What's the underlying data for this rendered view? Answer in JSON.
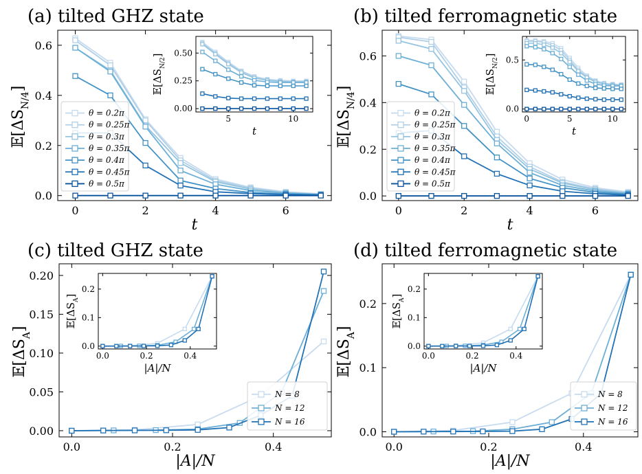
{
  "chart_data": [
    {
      "type": "line",
      "panel": "a",
      "title": "(a) tilted GHZ state",
      "xlabel": "t",
      "ylabel": "𝔼[ΔS_N/4]",
      "xlim": [
        -0.5,
        7.3
      ],
      "ylim": [
        -0.02,
        0.66
      ],
      "xticks": [
        0,
        2,
        4,
        6
      ],
      "yticks": [
        0.0,
        0.2,
        0.4,
        0.6
      ],
      "ytick_labels": [
        "0.0",
        "0.2",
        "0.4",
        "0.6"
      ],
      "legend_placement": "center-left",
      "x": [
        0,
        1,
        2,
        3,
        4,
        5,
        6,
        7
      ],
      "series": [
        {
          "name": "θ = 0.2π",
          "color": "#c6dbef",
          "values": [
            0.628,
            0.53,
            0.305,
            0.15,
            0.066,
            0.033,
            0.015,
            0.007
          ]
        },
        {
          "name": "θ = 0.25π",
          "color": "#b1d0e7",
          "values": [
            0.62,
            0.52,
            0.3,
            0.14,
            0.06,
            0.03,
            0.013,
            0.006
          ]
        },
        {
          "name": "θ = 0.3π",
          "color": "#94c4df",
          "values": [
            0.59,
            0.5,
            0.28,
            0.13,
            0.055,
            0.026,
            0.011,
            0.005
          ]
        },
        {
          "name": "θ = 0.35π",
          "color": "#6baed6",
          "values": [
            0.59,
            0.495,
            0.275,
            0.1,
            0.045,
            0.02,
            0.01,
            0.004
          ]
        },
        {
          "name": "θ = 0.4π",
          "color": "#4292c6",
          "values": [
            0.477,
            0.4,
            0.21,
            0.06,
            0.028,
            0.012,
            0.006,
            0.003
          ]
        },
        {
          "name": "θ = 0.45π",
          "color": "#2171b5",
          "values": [
            0.25,
            0.25,
            0.12,
            0.04,
            0.015,
            0.008,
            0.004,
            0.002
          ]
        },
        {
          "name": "θ = 0.5π",
          "color": "#08519c",
          "values": [
            0.0,
            0.0,
            0.0,
            0.0,
            0.0,
            0.0,
            0.0,
            0.0
          ]
        }
      ],
      "inset": {
        "xlabel": "t",
        "ylabel": "𝔼[ΔS_N/2]",
        "xlim": [
          2.5,
          11.5
        ],
        "ylim": [
          -0.03,
          0.65
        ],
        "xticks": [
          5,
          10
        ],
        "yticks": [
          0.0,
          0.25,
          0.5
        ],
        "ytick_labels": [
          "0.00",
          "0.25",
          "0.50"
        ],
        "x": [
          3,
          4,
          5,
          6,
          7,
          8,
          9,
          10,
          11
        ],
        "series": [
          {
            "color": "#c6dbef",
            "values": [
              0.6,
              0.51,
              0.42,
              0.34,
              0.29,
              0.265,
              0.255,
              0.25,
              0.25
            ]
          },
          {
            "color": "#b1d0e7",
            "values": [
              0.59,
              0.5,
              0.41,
              0.335,
              0.285,
              0.26,
              0.25,
              0.245,
              0.245
            ]
          },
          {
            "color": "#94c4df",
            "values": [
              0.58,
              0.49,
              0.4,
              0.325,
              0.275,
              0.255,
              0.245,
              0.24,
              0.24
            ]
          },
          {
            "color": "#6baed6",
            "values": [
              0.51,
              0.43,
              0.35,
              0.29,
              0.255,
              0.24,
              0.235,
              0.235,
              0.235
            ]
          },
          {
            "color": "#4292c6",
            "values": [
              0.355,
              0.31,
              0.27,
              0.235,
              0.21,
              0.205,
              0.205,
              0.205,
              0.205
            ]
          },
          {
            "color": "#2171b5",
            "values": [
              0.135,
              0.11,
              0.095,
              0.09,
              0.09,
              0.09,
              0.09,
              0.09,
              0.09
            ]
          },
          {
            "color": "#08519c",
            "values": [
              0.0,
              0.0,
              0.0,
              0.0,
              0.0,
              0.0,
              0.0,
              0.0,
              0.0
            ]
          }
        ]
      }
    },
    {
      "type": "line",
      "panel": "b",
      "title": "(b) tilted ferromagnetic state",
      "xlabel": "t",
      "ylabel": "𝔼[ΔS_N/4]",
      "xlim": [
        -0.5,
        7.3
      ],
      "ylim": [
        -0.02,
        0.71
      ],
      "xticks": [
        0,
        2,
        4,
        6
      ],
      "yticks": [
        0.0,
        0.2,
        0.4,
        0.6
      ],
      "ytick_labels": [
        "0.0",
        "0.2",
        "0.4",
        "0.6"
      ],
      "legend_placement": "center-left",
      "x": [
        0,
        1,
        2,
        3,
        4,
        5,
        6,
        7
      ],
      "series": [
        {
          "name": "θ = 0.2π",
          "color": "#c6dbef",
          "values": [
            0.685,
            0.67,
            0.49,
            0.275,
            0.14,
            0.07,
            0.035,
            0.017
          ]
        },
        {
          "name": "θ = 0.25π",
          "color": "#b1d0e7",
          "values": [
            0.68,
            0.66,
            0.465,
            0.255,
            0.125,
            0.06,
            0.03,
            0.014
          ]
        },
        {
          "name": "θ = 0.3π",
          "color": "#94c4df",
          "values": [
            0.665,
            0.63,
            0.45,
            0.24,
            0.115,
            0.055,
            0.026,
            0.012
          ]
        },
        {
          "name": "θ = 0.35π",
          "color": "#6baed6",
          "values": [
            0.6,
            0.56,
            0.39,
            0.225,
            0.1,
            0.045,
            0.021,
            0.01
          ]
        },
        {
          "name": "θ = 0.4π",
          "color": "#4292c6",
          "values": [
            0.48,
            0.435,
            0.3,
            0.165,
            0.075,
            0.035,
            0.015,
            0.007
          ]
        },
        {
          "name": "θ = 0.45π",
          "color": "#2171b5",
          "values": [
            0.27,
            0.28,
            0.17,
            0.095,
            0.045,
            0.02,
            0.009,
            0.004
          ]
        },
        {
          "name": "θ = 0.5π",
          "color": "#08519c",
          "values": [
            0.0,
            0.0,
            0.0,
            0.0,
            0.0,
            0.0,
            0.0,
            0.0
          ]
        }
      ],
      "inset": {
        "xlabel": "t",
        "ylabel": "𝔼[ΔS_N/2]",
        "xlim": [
          -0.5,
          11.5
        ],
        "ylim": [
          -0.03,
          0.74
        ],
        "xticks": [
          0,
          5,
          10
        ],
        "yticks": [
          0.0,
          0.5
        ],
        "ytick_labels": [
          "0.0",
          "0.5"
        ],
        "x": [
          0,
          1,
          2,
          3,
          4,
          5,
          6,
          7,
          8,
          9,
          10,
          11
        ],
        "series": [
          {
            "color": "#c6dbef",
            "values": [
              0.7,
              0.7,
              0.69,
              0.67,
              0.62,
              0.52,
              0.42,
              0.34,
              0.29,
              0.265,
              0.255,
              0.25
            ]
          },
          {
            "color": "#b1d0e7",
            "values": [
              0.69,
              0.69,
              0.68,
              0.65,
              0.6,
              0.5,
              0.4,
              0.33,
              0.285,
              0.26,
              0.25,
              0.245
            ]
          },
          {
            "color": "#94c4df",
            "values": [
              0.67,
              0.67,
              0.655,
              0.625,
              0.57,
              0.48,
              0.385,
              0.32,
              0.275,
              0.255,
              0.245,
              0.24
            ]
          },
          {
            "color": "#6baed6",
            "values": [
              0.64,
              0.63,
              0.61,
              0.57,
              0.51,
              0.43,
              0.35,
              0.29,
              0.255,
              0.24,
              0.235,
              0.235
            ]
          },
          {
            "color": "#4292c6",
            "values": [
              0.455,
              0.45,
              0.43,
              0.4,
              0.355,
              0.3,
              0.26,
              0.235,
              0.215,
              0.21,
              0.205,
              0.205
            ]
          },
          {
            "color": "#2171b5",
            "values": [
              0.195,
              0.19,
              0.18,
              0.17,
              0.15,
              0.13,
              0.115,
              0.105,
              0.1,
              0.095,
              0.095,
              0.095
            ]
          },
          {
            "color": "#08519c",
            "values": [
              0.0,
              0.0,
              0.0,
              0.0,
              0.0,
              0.0,
              0.0,
              0.0,
              0.0,
              0.0,
              0.0,
              0.0
            ]
          }
        ]
      }
    },
    {
      "type": "line",
      "panel": "c",
      "title": "(c) tilted GHZ state",
      "xlabel": "|A|/N",
      "ylabel": "𝔼[ΔS_A]",
      "xlim": [
        -0.025,
        0.515
      ],
      "ylim": [
        -0.008,
        0.215
      ],
      "xticks": [
        0.0,
        0.2,
        0.4
      ],
      "yticks": [
        0.0,
        0.05,
        0.1,
        0.15,
        0.2
      ],
      "ytick_labels": [
        "0.00",
        "0.05",
        "0.10",
        "0.15",
        "0.20"
      ],
      "legend_placement": "lower-right",
      "series": [
        {
          "name": "N = 8",
          "color": "#c6dbef",
          "x": [
            0.0,
            0.125,
            0.25,
            0.375,
            0.5
          ],
          "values": [
            0.0,
            0.001,
            0.008,
            0.045,
            0.115
          ]
        },
        {
          "name": "N = 12",
          "color": "#6baed6",
          "x": [
            0.0,
            0.0833,
            0.1667,
            0.25,
            0.3333,
            0.4167,
            0.5
          ],
          "values": [
            0.0,
            0.0004,
            0.0008,
            0.002,
            0.01,
            0.05,
            0.18
          ]
        },
        {
          "name": "N = 16",
          "color": "#2171b5",
          "x": [
            0.0,
            0.0625,
            0.125,
            0.1875,
            0.25,
            0.3125,
            0.375,
            0.4375,
            0.5
          ],
          "values": [
            0.0,
            0.0002,
            0.0004,
            0.0006,
            0.001,
            0.004,
            0.02,
            0.045,
            0.205
          ]
        }
      ],
      "inset": {
        "xlabel": "|A|/N",
        "ylabel": "𝔼[ΔS_A]",
        "xlim": [
          -0.02,
          0.52
        ],
        "ylim": [
          -0.01,
          0.255
        ],
        "xticks": [
          0.0,
          0.2,
          0.4
        ],
        "yticks": [
          0.0,
          0.1,
          0.2
        ],
        "ytick_labels": [
          "0.0",
          "0.1",
          "0.2"
        ],
        "series": [
          {
            "color": "#c6dbef",
            "x": [
              0.0,
              0.125,
              0.25,
              0.375,
              0.5
            ],
            "values": [
              0.0,
              0.001,
              0.01,
              0.06,
              0.245
            ]
          },
          {
            "color": "#6baed6",
            "x": [
              0.0,
              0.0833,
              0.1667,
              0.25,
              0.3333,
              0.4167,
              0.5
            ],
            "values": [
              0.0,
              0.0005,
              0.001,
              0.003,
              0.015,
              0.06,
              0.245
            ]
          },
          {
            "color": "#2171b5",
            "x": [
              0.0,
              0.0625,
              0.125,
              0.1875,
              0.25,
              0.3125,
              0.375,
              0.4375,
              0.5
            ],
            "values": [
              0.0,
              0.0002,
              0.0004,
              0.0006,
              0.001,
              0.004,
              0.02,
              0.06,
              0.245
            ]
          }
        ]
      }
    },
    {
      "type": "line",
      "panel": "d",
      "title": "(d) tilted ferromagnetic state",
      "xlabel": "|A|/N",
      "ylabel": "𝔼[ΔS_A]",
      "xlim": [
        -0.025,
        0.515
      ],
      "ylim": [
        -0.008,
        0.262
      ],
      "xticks": [
        0.0,
        0.2,
        0.4
      ],
      "yticks": [
        0.0,
        0.1,
        0.2
      ],
      "ytick_labels": [
        "0.0",
        "0.1",
        "0.2"
      ],
      "legend_placement": "lower-right",
      "series": [
        {
          "name": "N = 8",
          "color": "#c6dbef",
          "x": [
            0.0,
            0.125,
            0.25,
            0.375,
            0.5
          ],
          "values": [
            0.0,
            0.002,
            0.015,
            0.06,
            0.245
          ]
        },
        {
          "name": "N = 12",
          "color": "#6baed6",
          "x": [
            0.0,
            0.0833,
            0.1667,
            0.25,
            0.3333,
            0.4167,
            0.5
          ],
          "values": [
            0.0,
            0.0005,
            0.001,
            0.004,
            0.015,
            0.06,
            0.245
          ]
        },
        {
          "name": "N = 16",
          "color": "#2171b5",
          "x": [
            0.0,
            0.0625,
            0.125,
            0.1875,
            0.25,
            0.3125,
            0.375,
            0.4375,
            0.5
          ],
          "values": [
            0.0,
            0.0002,
            0.0004,
            0.0006,
            0.001,
            0.004,
            0.02,
            0.06,
            0.245
          ]
        }
      ],
      "inset": {
        "xlabel": "|A|/N",
        "ylabel": "𝔼[ΔS_A]",
        "xlim": [
          -0.02,
          0.52
        ],
        "ylim": [
          -0.01,
          0.255
        ],
        "xticks": [
          0.0,
          0.2,
          0.4
        ],
        "yticks": [
          0.0,
          0.1,
          0.2
        ],
        "ytick_labels": [
          "0.0",
          "0.1",
          "0.2"
        ],
        "series": [
          {
            "color": "#c6dbef",
            "x": [
              0.0,
              0.125,
              0.25,
              0.375,
              0.5
            ],
            "values": [
              0.0,
              0.002,
              0.012,
              0.06,
              0.245
            ]
          },
          {
            "color": "#6baed6",
            "x": [
              0.0,
              0.0833,
              0.1667,
              0.25,
              0.3333,
              0.4167,
              0.5
            ],
            "values": [
              0.0,
              0.0005,
              0.001,
              0.004,
              0.015,
              0.06,
              0.245
            ]
          },
          {
            "color": "#2171b5",
            "x": [
              0.0,
              0.0625,
              0.125,
              0.1875,
              0.25,
              0.3125,
              0.375,
              0.4375,
              0.5
            ],
            "values": [
              0.0,
              0.0002,
              0.0004,
              0.0006,
              0.001,
              0.004,
              0.02,
              0.06,
              0.245
            ]
          }
        ]
      }
    }
  ]
}
